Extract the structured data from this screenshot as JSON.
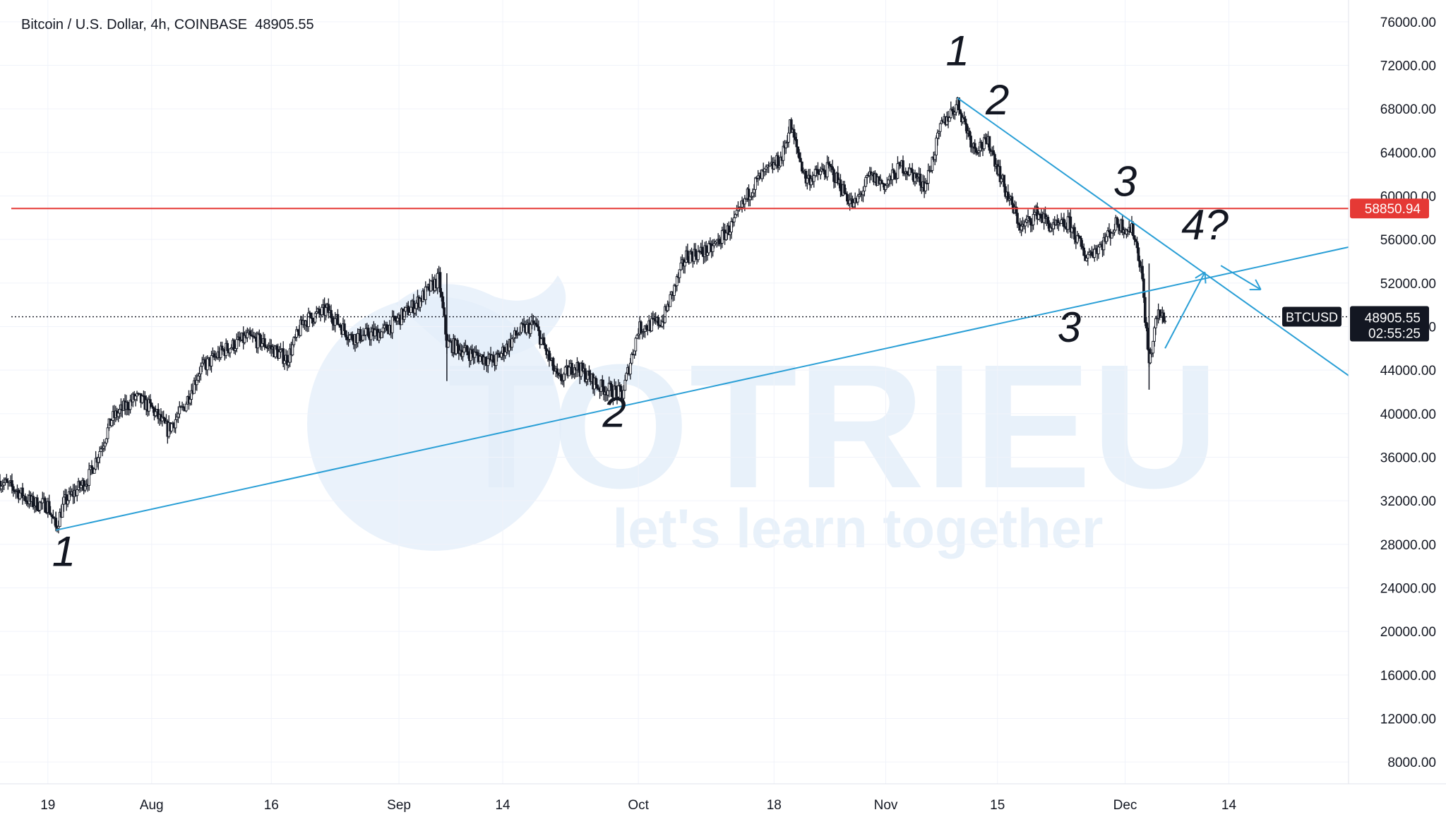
{
  "header": {
    "title": "Bitcoin / U.S. Dollar, 4h, COINBASE  48905.55"
  },
  "colors": {
    "background": "#ffffff",
    "grid": "#f0f3fa",
    "candle": "#131722",
    "trendline": "#2a9fd6",
    "resistance": "#e53935",
    "label_dark": "#131722",
    "label_red": "#e53935",
    "watermark": "#e3eef9"
  },
  "watermark": {
    "brand": "TOTRIEU",
    "tagline": "let's learn together"
  },
  "chart_data": {
    "type": "candlestick",
    "symbol": "BTCUSD",
    "interval": "4h",
    "exchange": "COINBASE",
    "last_price": "48905.55",
    "countdown": "02:55:25",
    "ylim": [
      6000,
      78000
    ],
    "y_ticks": [
      "76000.00",
      "72000.00",
      "68000.00",
      "64000.00",
      "60000.00",
      "56000.00",
      "52000.00",
      "48000.00",
      "44000.00",
      "40000.00",
      "36000.00",
      "32000.00",
      "28000.00",
      "24000.00",
      "20000.00",
      "16000.00",
      "12000.00",
      "8000.00"
    ],
    "x_range": [
      "2021-07-13",
      "2021-12-29"
    ],
    "x_ticks": [
      {
        "date": "2021-07-19",
        "label": "19"
      },
      {
        "date": "2021-08-01",
        "label": "Aug"
      },
      {
        "date": "2021-08-16",
        "label": "16"
      },
      {
        "date": "2021-09-01",
        "label": "Sep"
      },
      {
        "date": "2021-09-14",
        "label": "14"
      },
      {
        "date": "2021-10-01",
        "label": "Oct"
      },
      {
        "date": "2021-10-18",
        "label": "18"
      },
      {
        "date": "2021-11-01",
        "label": "Nov"
      },
      {
        "date": "2021-11-15",
        "label": "15"
      },
      {
        "date": "2021-12-01",
        "label": "Dec"
      },
      {
        "date": "2021-12-14",
        "label": "14"
      }
    ],
    "price_path": [
      {
        "date": "2021-07-13",
        "close": 33800
      },
      {
        "date": "2021-07-15",
        "close": 33000
      },
      {
        "date": "2021-07-17",
        "close": 31800
      },
      {
        "date": "2021-07-19",
        "close": 31600
      },
      {
        "date": "2021-07-20",
        "close": 29500
      },
      {
        "date": "2021-07-21",
        "close": 31800
      },
      {
        "date": "2021-07-24",
        "close": 34000
      },
      {
        "date": "2021-07-26",
        "close": 37500
      },
      {
        "date": "2021-07-27",
        "close": 39500
      },
      {
        "date": "2021-07-30",
        "close": 41500
      },
      {
        "date": "2021-08-01",
        "close": 40500
      },
      {
        "date": "2021-08-03",
        "close": 38500
      },
      {
        "date": "2021-08-05",
        "close": 40500
      },
      {
        "date": "2021-08-07",
        "close": 44000
      },
      {
        "date": "2021-08-10",
        "close": 45800
      },
      {
        "date": "2021-08-13",
        "close": 47000
      },
      {
        "date": "2021-08-15",
        "close": 46500
      },
      {
        "date": "2021-08-18",
        "close": 45000
      },
      {
        "date": "2021-08-20",
        "close": 48500
      },
      {
        "date": "2021-08-23",
        "close": 49500
      },
      {
        "date": "2021-08-26",
        "close": 47000
      },
      {
        "date": "2021-08-30",
        "close": 47500
      },
      {
        "date": "2021-09-03",
        "close": 50000
      },
      {
        "date": "2021-09-06",
        "close": 52400
      },
      {
        "date": "2021-09-07",
        "close": 46500
      },
      {
        "date": "2021-09-10",
        "close": 45500
      },
      {
        "date": "2021-09-13",
        "close": 44800
      },
      {
        "date": "2021-09-16",
        "close": 47500
      },
      {
        "date": "2021-09-18",
        "close": 48200
      },
      {
        "date": "2021-09-21",
        "close": 43000
      },
      {
        "date": "2021-09-23",
        "close": 44500
      },
      {
        "date": "2021-09-26",
        "close": 42500
      },
      {
        "date": "2021-09-29",
        "close": 41800
      },
      {
        "date": "2021-10-01",
        "close": 47800
      },
      {
        "date": "2021-10-04",
        "close": 48500
      },
      {
        "date": "2021-10-07",
        "close": 54500
      },
      {
        "date": "2021-10-10",
        "close": 55000
      },
      {
        "date": "2021-10-13",
        "close": 57500
      },
      {
        "date": "2021-10-15",
        "close": 60500
      },
      {
        "date": "2021-10-16",
        "close": 61500
      },
      {
        "date": "2021-10-19",
        "close": 63500
      },
      {
        "date": "2021-10-20",
        "close": 66500
      },
      {
        "date": "2021-10-22",
        "close": 61500
      },
      {
        "date": "2021-10-25",
        "close": 62500
      },
      {
        "date": "2021-10-28",
        "close": 59000
      },
      {
        "date": "2021-10-30",
        "close": 61800
      },
      {
        "date": "2021-11-01",
        "close": 61000
      },
      {
        "date": "2021-11-03",
        "close": 62800
      },
      {
        "date": "2021-11-06",
        "close": 61000
      },
      {
        "date": "2021-11-08",
        "close": 66500
      },
      {
        "date": "2021-11-10",
        "close": 68500
      },
      {
        "date": "2021-11-12",
        "close": 64500
      },
      {
        "date": "2021-11-14",
        "close": 64800
      },
      {
        "date": "2021-11-16",
        "close": 60500
      },
      {
        "date": "2021-11-18",
        "close": 57000
      },
      {
        "date": "2021-11-20",
        "close": 58500
      },
      {
        "date": "2021-11-22",
        "close": 57000
      },
      {
        "date": "2021-11-24",
        "close": 57500
      },
      {
        "date": "2021-11-26",
        "close": 54500
      },
      {
        "date": "2021-11-28",
        "close": 55500
      },
      {
        "date": "2021-11-30",
        "close": 57500
      },
      {
        "date": "2021-12-02",
        "close": 56800
      },
      {
        "date": "2021-12-03",
        "close": 53500
      },
      {
        "date": "2021-12-04",
        "close": 44500
      },
      {
        "date": "2021-12-05",
        "close": 49000
      },
      {
        "date": "2021-12-06",
        "close": 48900
      }
    ],
    "lines": [
      {
        "name": "ascending-trendline",
        "color": "#2a9fd6",
        "from": {
          "date": "2021-07-20",
          "price": 29300
        },
        "to": {
          "date": "2021-12-29",
          "price": 55300
        }
      },
      {
        "name": "descending-trendline",
        "color": "#2a9fd6",
        "from": {
          "date": "2021-11-10",
          "price": 69000
        },
        "to": {
          "date": "2021-12-29",
          "price": 43500
        }
      },
      {
        "name": "resistance-line",
        "color": "#e53935",
        "price": 58850.94
      },
      {
        "name": "last-price-line",
        "color": "#131722",
        "price": 48905.55,
        "style": "dotted"
      }
    ],
    "arrows": [
      {
        "name": "arrow-up",
        "from": {
          "date": "2021-12-06",
          "price": 46000
        },
        "to": {
          "date": "2021-12-11",
          "price": 53000
        }
      },
      {
        "name": "arrow-down",
        "from": {
          "date": "2021-12-13",
          "price": 53600
        },
        "to": {
          "date": "2021-12-18",
          "price": 51400
        }
      }
    ],
    "price_labels": [
      {
        "name": "resistance-price-label",
        "value": "58850.94",
        "price": 58850.94,
        "color": "#e53935"
      },
      {
        "name": "last-price-label",
        "value": "48905.55",
        "price": 48905.55,
        "color": "#131722"
      }
    ],
    "annotations": [
      {
        "text": "1",
        "date": "2021-07-21",
        "price": 26000
      },
      {
        "text": "2",
        "date": "2021-09-28",
        "price": 38800
      },
      {
        "text": "1",
        "date": "2021-11-10",
        "price": 72000
      },
      {
        "text": "2",
        "date": "2021-11-15",
        "price": 67500
      },
      {
        "text": "3",
        "date": "2021-12-01",
        "price": 60000
      },
      {
        "text": "3",
        "date": "2021-11-24",
        "price": 46600
      },
      {
        "text": "4?",
        "date": "2021-12-11",
        "price": 56000
      }
    ]
  }
}
